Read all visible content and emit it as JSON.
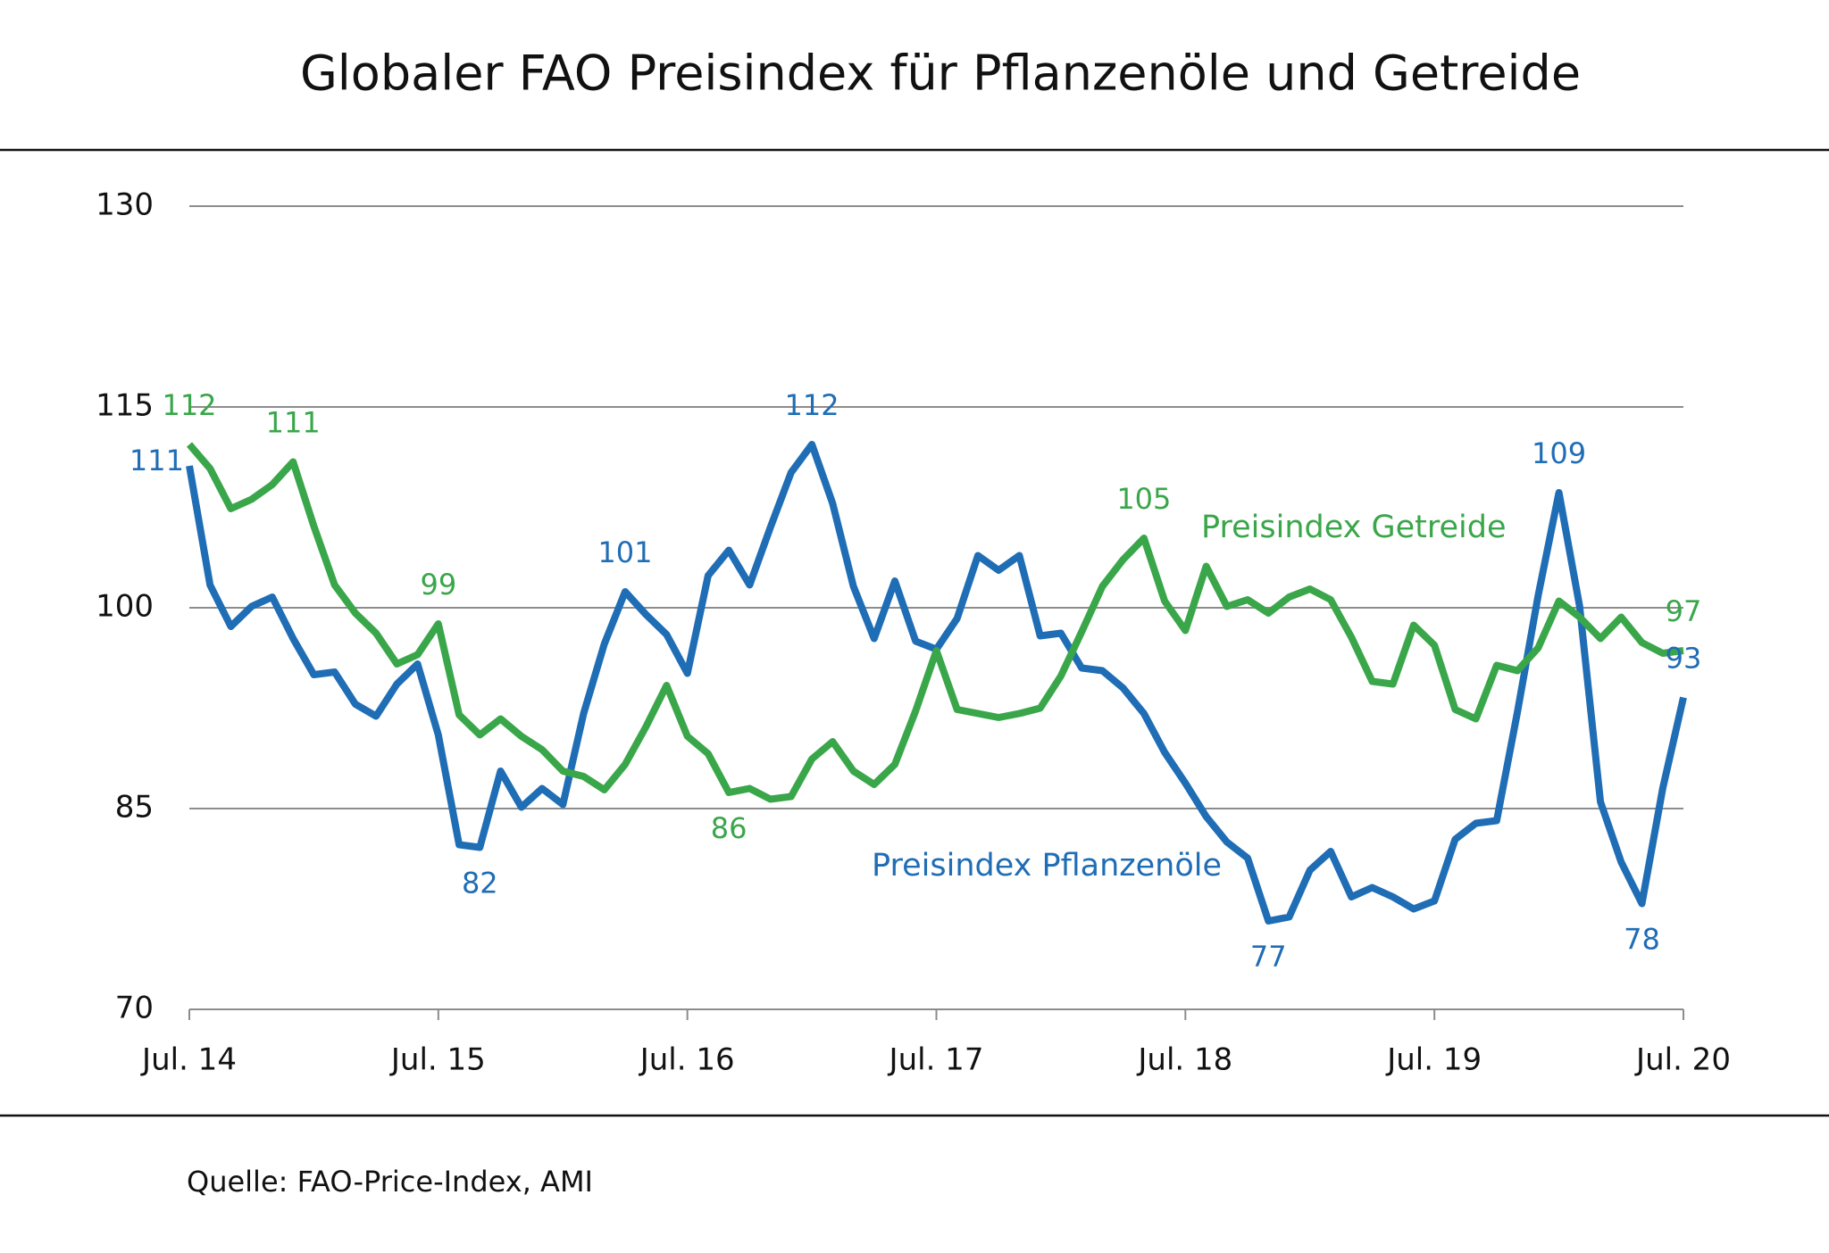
{
  "chart_data": {
    "type": "line",
    "title": "Globaler FAO Preisindex für Pflanzenöle und Getreide",
    "source": "Quelle: FAO-Price-Index, AMI",
    "categories": [
      "Jul. 14",
      null,
      null,
      null,
      null,
      null,
      null,
      null,
      null,
      null,
      null,
      null,
      "Jul. 15",
      null,
      null,
      null,
      null,
      null,
      null,
      null,
      null,
      null,
      null,
      null,
      "Jul. 16",
      null,
      null,
      null,
      null,
      null,
      null,
      null,
      null,
      null,
      null,
      null,
      "Jul. 17",
      null,
      null,
      null,
      null,
      null,
      null,
      null,
      null,
      null,
      null,
      null,
      "Jul. 18",
      null,
      null,
      null,
      null,
      null,
      null,
      null,
      null,
      null,
      null,
      null,
      "Jul. 19",
      null,
      null,
      null,
      null,
      null,
      null,
      null,
      null,
      null,
      null,
      null,
      "Jul. 20"
    ],
    "ylim": [
      70,
      130
    ],
    "yticks": [
      70,
      85,
      100,
      115,
      130
    ],
    "grid": true,
    "series": [
      {
        "name": "Preisindex Pflanzenöle",
        "color": "#1f6db5",
        "values": [
          110.6,
          101.7,
          98.6,
          100.1,
          100.8,
          97.7,
          95.0,
          95.2,
          92.8,
          91.9,
          94.3,
          95.8,
          90.5,
          82.3,
          82.1,
          87.8,
          85.1,
          86.5,
          85.3,
          92.1,
          97.3,
          101.2,
          99.5,
          98.0,
          95.1,
          102.4,
          104.3,
          101.7,
          106.0,
          110.1,
          112.2,
          107.8,
          101.6,
          97.7,
          102.0,
          97.5,
          96.9,
          99.2,
          103.9,
          102.8,
          103.9,
          97.9,
          98.1,
          95.5,
          95.3,
          94.0,
          92.1,
          89.2,
          86.9,
          84.4,
          82.5,
          81.3,
          76.6,
          76.9,
          80.4,
          81.8,
          78.4,
          79.1,
          78.4,
          77.5,
          78.1,
          82.7,
          83.9,
          84.1,
          92.2,
          100.9,
          108.6,
          100.1,
          85.5,
          81.0,
          77.9,
          86.5,
          93.3
        ],
        "value_labels": [
          "111",
          null,
          null,
          null,
          null,
          null,
          null,
          null,
          null,
          null,
          null,
          null,
          null,
          null,
          "82",
          null,
          null,
          null,
          null,
          null,
          null,
          "101",
          null,
          null,
          null,
          null,
          null,
          null,
          null,
          null,
          "112",
          null,
          null,
          null,
          null,
          null,
          null,
          null,
          null,
          null,
          null,
          null,
          null,
          null,
          null,
          null,
          null,
          null,
          null,
          null,
          null,
          null,
          "77",
          null,
          null,
          null,
          null,
          null,
          null,
          null,
          null,
          null,
          null,
          null,
          null,
          null,
          "109",
          null,
          null,
          null,
          "78",
          null,
          "93"
        ]
      },
      {
        "name": "Preisindex Getreide",
        "color": "#3aa64a",
        "values": [
          112.2,
          110.4,
          107.4,
          108.1,
          109.2,
          110.9,
          106.1,
          101.7,
          99.6,
          98.1,
          95.8,
          96.5,
          98.8,
          92.0,
          90.5,
          91.7,
          90.4,
          89.4,
          87.8,
          87.4,
          86.4,
          88.3,
          91.1,
          94.2,
          90.4,
          89.1,
          86.2,
          86.5,
          85.7,
          85.9,
          88.7,
          90.0,
          87.8,
          86.8,
          88.3,
          92.3,
          96.8,
          92.4,
          92.1,
          91.8,
          92.1,
          92.5,
          94.9,
          98.2,
          101.6,
          103.6,
          105.2,
          100.5,
          98.3,
          103.1,
          100.1,
          100.6,
          99.6,
          100.8,
          101.4,
          100.6,
          97.8,
          94.5,
          94.3,
          98.7,
          97.2,
          92.4,
          91.7,
          95.7,
          95.3,
          97.0,
          100.5,
          99.3,
          97.7,
          99.3,
          97.4,
          96.6,
          96.8
        ],
        "value_labels": [
          "112",
          null,
          null,
          null,
          null,
          "111",
          null,
          null,
          null,
          null,
          null,
          null,
          "99",
          null,
          null,
          null,
          null,
          null,
          null,
          null,
          null,
          null,
          null,
          null,
          null,
          null,
          "86",
          null,
          null,
          null,
          null,
          null,
          null,
          null,
          null,
          null,
          null,
          null,
          null,
          null,
          null,
          null,
          null,
          null,
          null,
          null,
          "105",
          null,
          null,
          null,
          null,
          null,
          null,
          null,
          null,
          null,
          null,
          null,
          null,
          null,
          null,
          null,
          null,
          null,
          null,
          null,
          null,
          null,
          null,
          null,
          null,
          null,
          "97"
        ]
      }
    ]
  }
}
